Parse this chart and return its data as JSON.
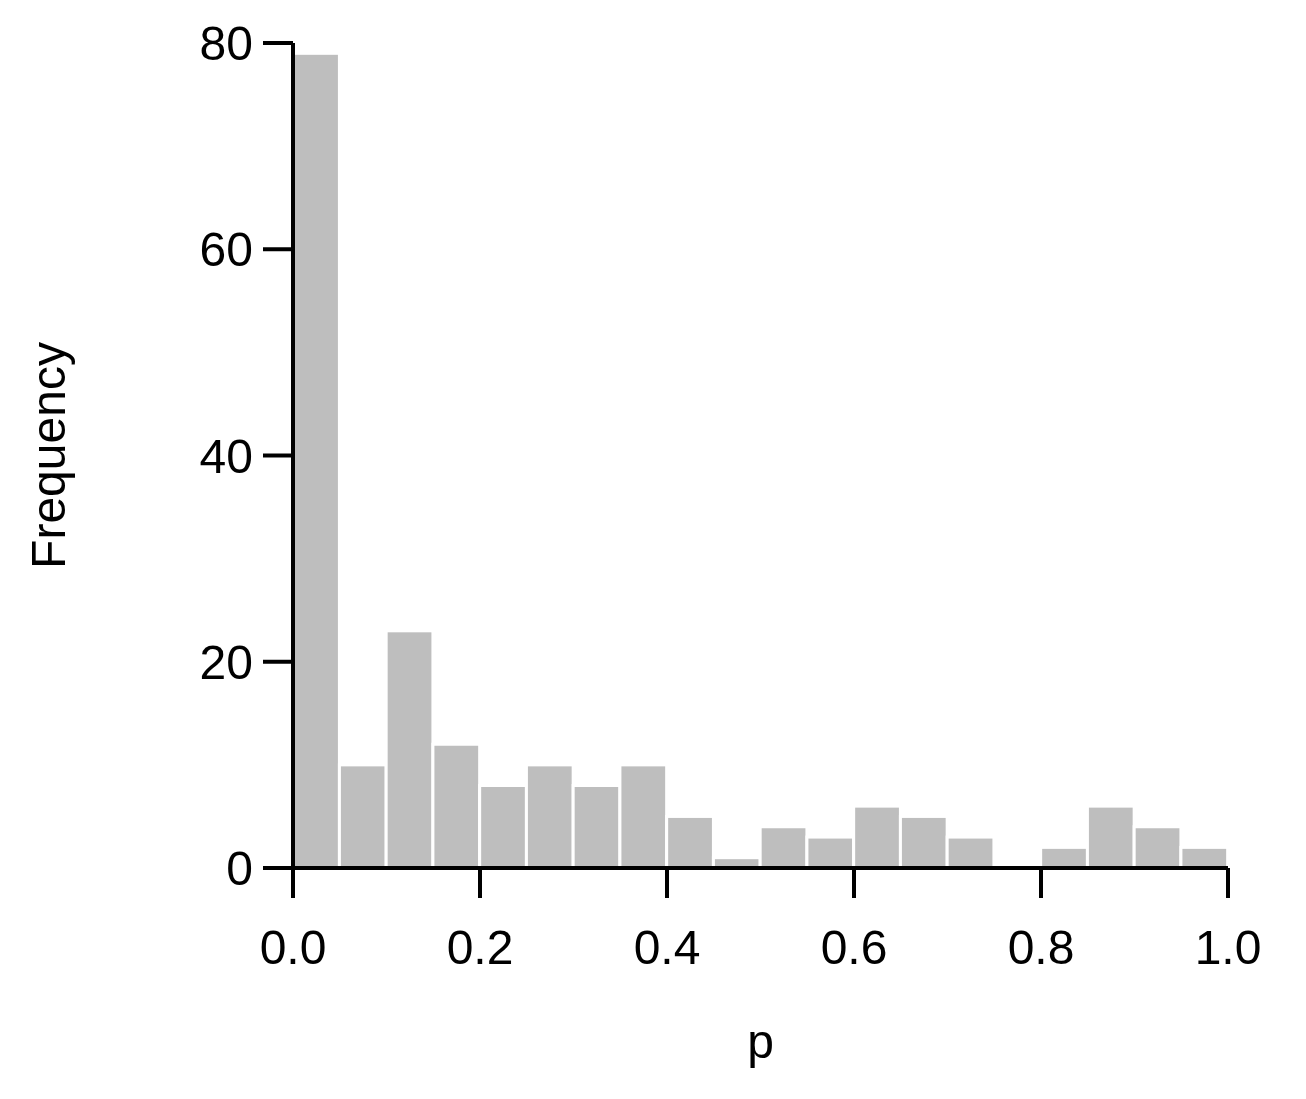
{
  "chart_data": {
    "type": "histogram",
    "xlabel": "p",
    "ylabel": "Frequency",
    "bins": [
      0,
      0.05,
      0.1,
      0.15,
      0.2,
      0.25,
      0.3,
      0.35,
      0.4,
      0.45,
      0.5,
      0.55,
      0.6,
      0.65,
      0.7,
      0.75,
      0.8,
      0.85,
      0.9,
      0.95,
      1.0
    ],
    "values": [
      79,
      10,
      23,
      12,
      8,
      10,
      8,
      10,
      5,
      1,
      4,
      3,
      6,
      5,
      3,
      0,
      2,
      6,
      4,
      2
    ],
    "color": "#bebebe",
    "xlim": [
      0,
      1
    ],
    "xticks": [
      {
        "value": 0,
        "label": "0.0"
      },
      {
        "value": 0.2,
        "label": "0.2"
      },
      {
        "value": 0.4,
        "label": "0.4"
      },
      {
        "value": 0.6,
        "label": "0.6"
      },
      {
        "value": 0.8,
        "label": "0.8"
      },
      {
        "value": 1,
        "label": "1.0"
      }
    ],
    "ylim": [
      0,
      80
    ],
    "yticks": [
      0,
      20,
      40,
      60,
      80
    ],
    "grid": false
  }
}
